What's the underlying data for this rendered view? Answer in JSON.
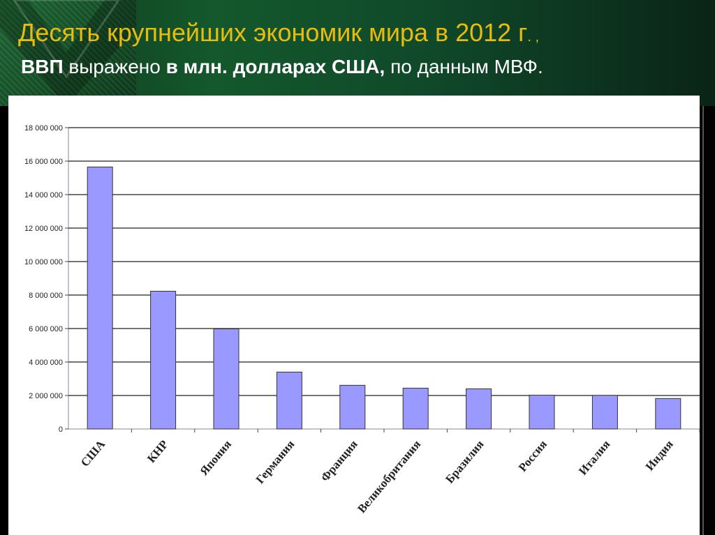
{
  "header": {
    "title_main": "Десять крупнейших экономик мира в 2012 г",
    "title_tail": ". ,",
    "subtitle_a": "ВВП",
    "subtitle_b": " выражено ",
    "subtitle_c": "в млн. долларах США,",
    "subtitle_d": " по данным МВФ."
  },
  "colors": {
    "title": "#e8bb0f",
    "subtitle": "#ffffff",
    "bar_fill": "#9999ff",
    "bar_stroke": "#333333",
    "gridline": "#222222"
  },
  "chart_data": {
    "type": "bar",
    "categories": [
      "США",
      "КНР",
      "Япония",
      "Германия",
      "Франция",
      "Великобритания",
      "Бразилия",
      "Россия",
      "Италия",
      "Индия"
    ],
    "values": [
      15650000,
      8230000,
      5980000,
      3400000,
      2610000,
      2440000,
      2400000,
      2020000,
      2010000,
      1820000
    ],
    "yticks": [
      "0",
      "2 000 000",
      "4 000 000",
      "6 000 000",
      "8 000 000",
      "10 000 000",
      "12 000 000",
      "14 000 000",
      "16 000 000",
      "18 000 000"
    ],
    "ylim": [
      0,
      18000000
    ],
    "grid": true,
    "legend": "none"
  }
}
